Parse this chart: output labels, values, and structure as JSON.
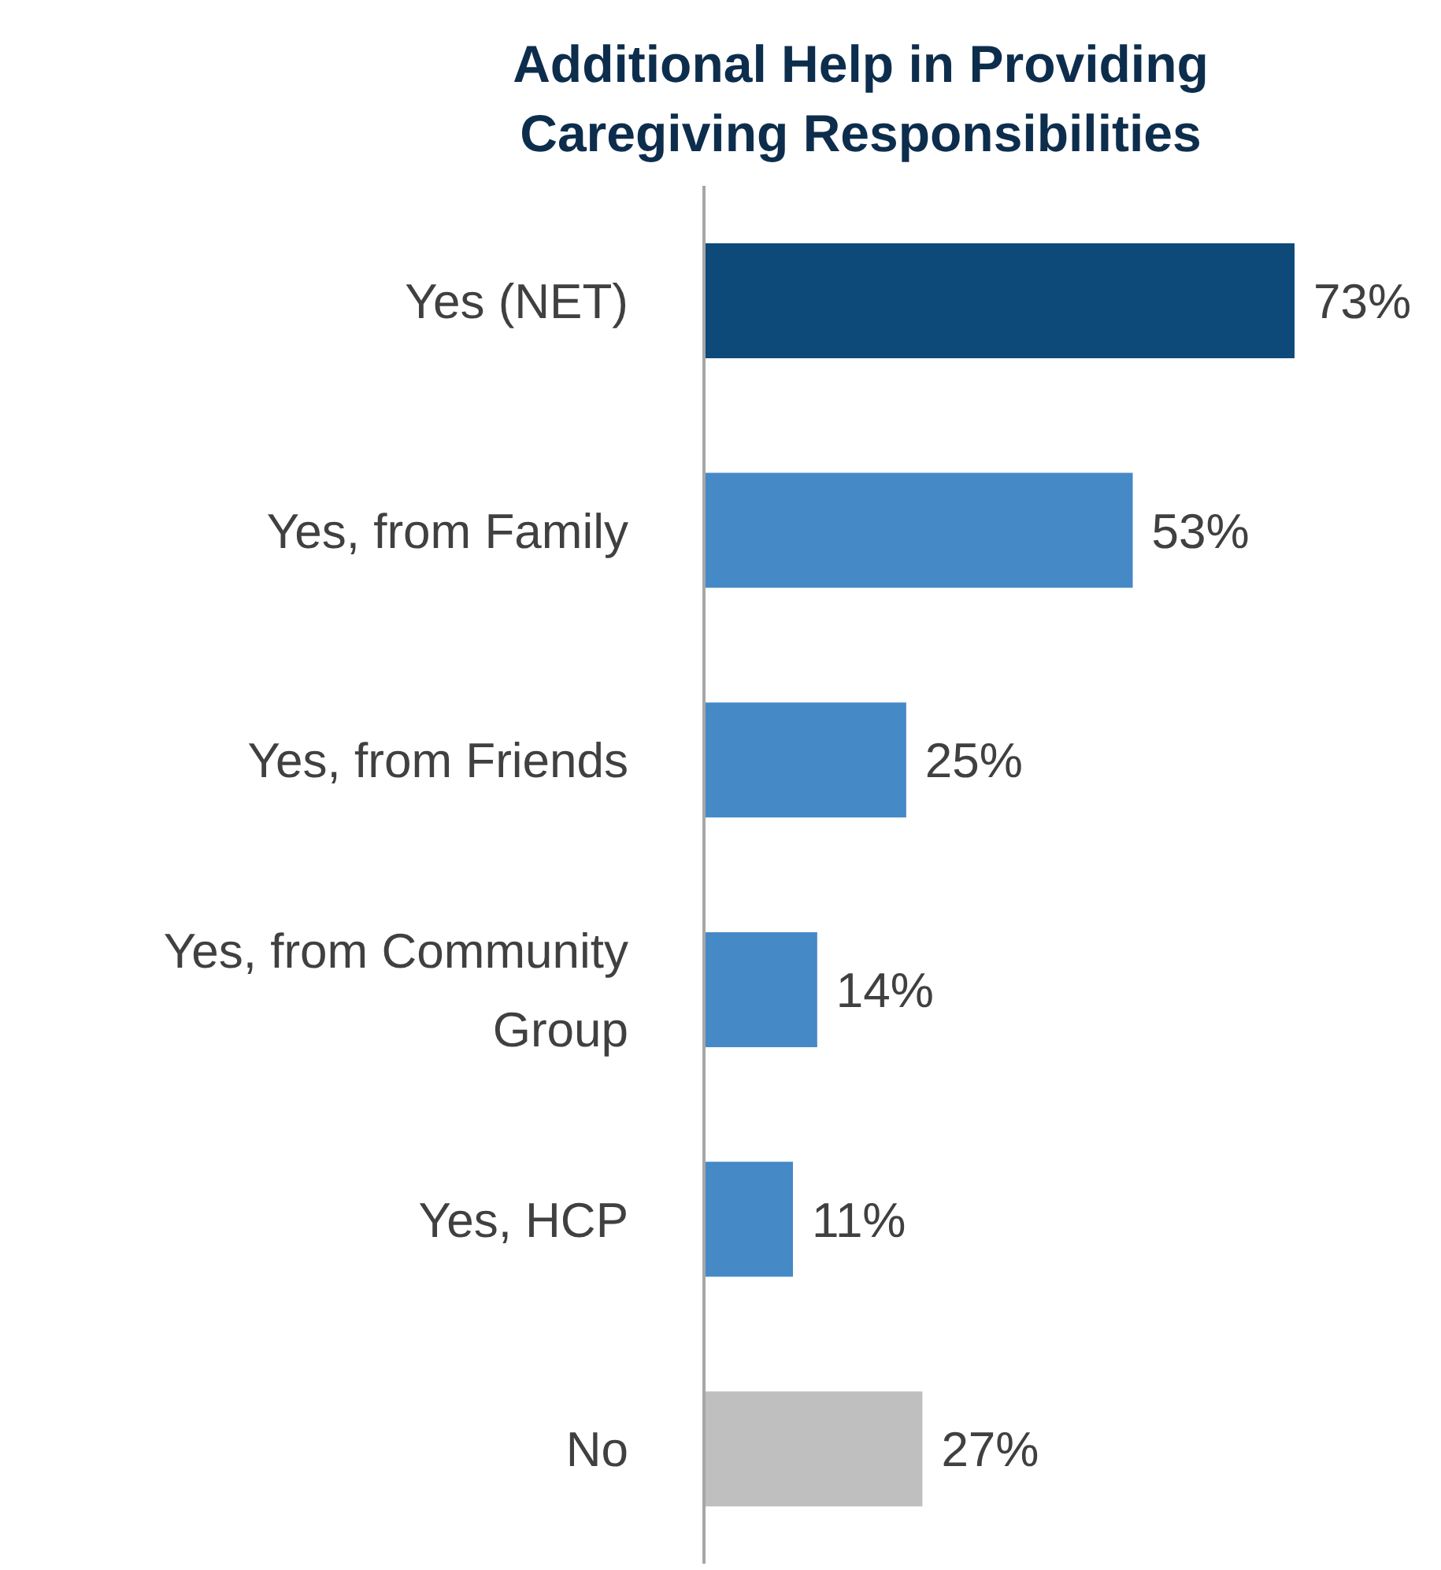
{
  "chart_data": {
    "type": "bar",
    "orientation": "horizontal",
    "title": "Additional Help in Providing Caregiving Responsibilities",
    "categories": [
      "Yes (NET)",
      "Yes, from Family",
      "Yes, from Friends",
      "Yes, from Community Group",
      "Yes, HCP",
      "No"
    ],
    "values": [
      73,
      53,
      25,
      14,
      11,
      27
    ],
    "value_labels": [
      "73%",
      "53%",
      "25%",
      "14%",
      "11%",
      "27%"
    ],
    "colors": [
      "#0d4a7a",
      "#4589c6",
      "#4589c6",
      "#4589c6",
      "#4589c6",
      "#bfbfbf"
    ]
  }
}
